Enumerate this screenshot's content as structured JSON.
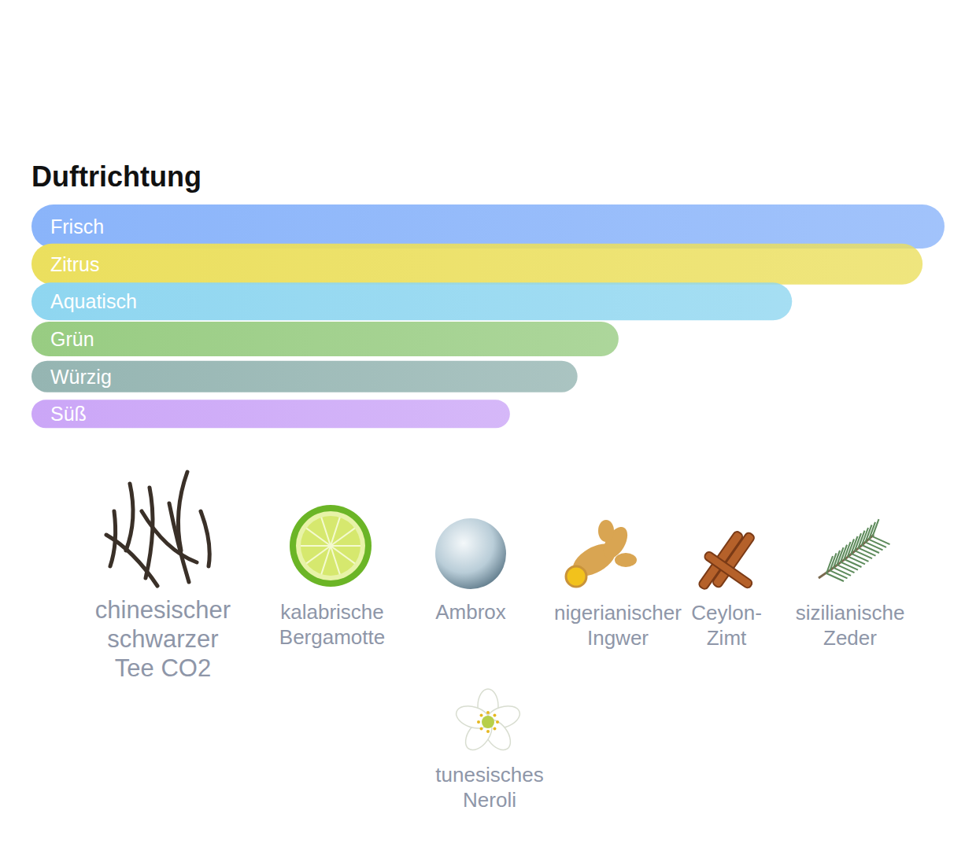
{
  "chart_data": {
    "type": "bar",
    "orientation": "horizontal",
    "title": "Duftrichtung",
    "categories": [
      "Frisch",
      "Zitrus",
      "Aquatisch",
      "Grün",
      "Würzig",
      "Süß"
    ],
    "values": [
      100,
      97.6,
      83.3,
      64.3,
      59.8,
      52.4
    ],
    "colors": [
      "#8ab4fa",
      "#ebdf5e",
      "#8fd6f0",
      "#98cc82",
      "#95b5b2",
      "#cba6f7"
    ],
    "xlim": [
      0,
      100
    ],
    "tick_labels": false,
    "grid": false,
    "annotations": [
      "chinesischer schwarzer Tee CO2",
      "kalabrische Bergamotte",
      "Ambrox",
      "nigerianischer Ingwer",
      "Ceylon-Zimt",
      "sizilianische Zeder",
      "tunesisches Neroli"
    ]
  }
}
